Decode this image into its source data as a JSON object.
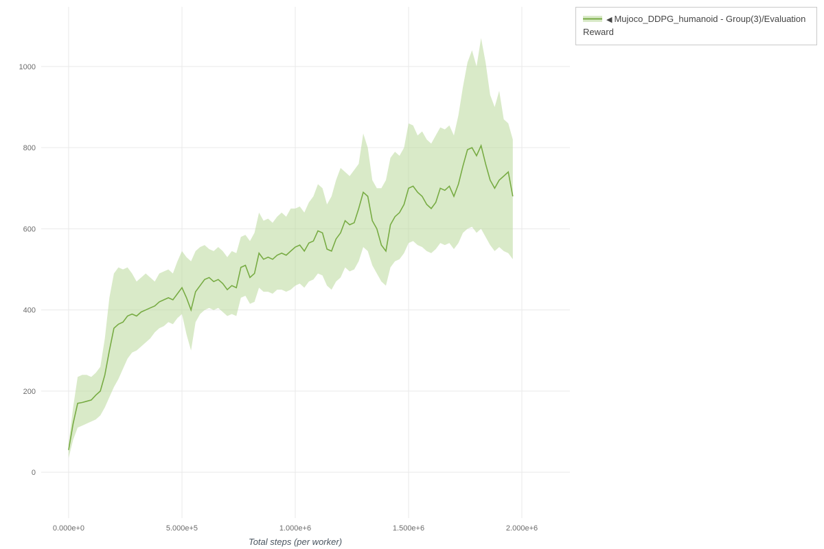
{
  "legend": {
    "collapse_icon": "◀",
    "label": "Mujoco_DDPG_humanoid - Group(3)/Evaluation Reward"
  },
  "chart_data": {
    "type": "line",
    "title": "",
    "xlabel": "Total steps (per worker)",
    "ylabel": "",
    "legend_position": "top-right",
    "grid": true,
    "x_start": 0,
    "x_step": 20000,
    "xlim": [
      -121000,
      2212000
    ],
    "ylim": [
      -113,
      1147
    ],
    "x_ticks": {
      "values": [
        0,
        500000,
        1000000,
        1500000,
        2000000
      ],
      "labels": [
        "0.000e+0",
        "5.000e+5",
        "1.000e+6",
        "1.500e+6",
        "2.000e+6"
      ]
    },
    "y_ticks": {
      "values": [
        0,
        200,
        400,
        600,
        800,
        1000
      ],
      "labels": [
        "0",
        "200",
        "400",
        "600",
        "800",
        "1000"
      ]
    },
    "colors": {
      "line": "#77ab43",
      "band": "#b9d89b",
      "band_opacity": "0.55",
      "grid": "#e9e9e9",
      "tick_text": "#6b6b6b",
      "axis_label": "#4a5560"
    },
    "series": [
      {
        "name": "Mujoco_DDPG_humanoid - Group(3)/Evaluation Reward",
        "mean": [
          55,
          120,
          170,
          172,
          175,
          178,
          190,
          200,
          240,
          300,
          355,
          365,
          370,
          385,
          390,
          385,
          395,
          400,
          405,
          410,
          420,
          425,
          430,
          425,
          440,
          455,
          430,
          400,
          445,
          460,
          475,
          480,
          470,
          475,
          465,
          450,
          460,
          455,
          505,
          510,
          480,
          490,
          540,
          525,
          530,
          525,
          535,
          540,
          535,
          545,
          555,
          560,
          545,
          565,
          570,
          595,
          590,
          550,
          545,
          575,
          590,
          620,
          610,
          615,
          650,
          690,
          680,
          620,
          600,
          560,
          545,
          610,
          630,
          640,
          660,
          700,
          705,
          690,
          680,
          660,
          650,
          665,
          700,
          695,
          705,
          680,
          710,
          755,
          795,
          800,
          780,
          805,
          760,
          720,
          700,
          720,
          730,
          740,
          680
        ],
        "band_high": [
          70,
          160,
          235,
          240,
          240,
          235,
          245,
          260,
          330,
          430,
          490,
          505,
          500,
          505,
          490,
          470,
          480,
          490,
          480,
          470,
          490,
          495,
          500,
          490,
          520,
          545,
          530,
          520,
          545,
          555,
          560,
          550,
          545,
          555,
          545,
          530,
          545,
          540,
          580,
          585,
          570,
          590,
          640,
          620,
          625,
          615,
          630,
          640,
          630,
          650,
          650,
          655,
          640,
          665,
          680,
          710,
          700,
          660,
          680,
          720,
          750,
          740,
          730,
          745,
          760,
          835,
          800,
          720,
          700,
          700,
          720,
          775,
          790,
          780,
          800,
          860,
          855,
          830,
          840,
          820,
          810,
          830,
          850,
          845,
          855,
          830,
          880,
          950,
          1010,
          1040,
          1000,
          1070,
          1010,
          930,
          900,
          940,
          870,
          860,
          820
        ],
        "band_low": [
          35,
          80,
          110,
          115,
          120,
          125,
          130,
          140,
          160,
          185,
          210,
          230,
          255,
          280,
          295,
          300,
          310,
          320,
          330,
          345,
          355,
          360,
          370,
          365,
          380,
          390,
          340,
          300,
          370,
          390,
          400,
          405,
          400,
          405,
          395,
          385,
          390,
          385,
          430,
          435,
          415,
          420,
          455,
          445,
          445,
          440,
          450,
          450,
          445,
          450,
          460,
          465,
          455,
          470,
          475,
          490,
          485,
          460,
          450,
          470,
          480,
          505,
          495,
          500,
          520,
          555,
          545,
          510,
          490,
          470,
          460,
          505,
          520,
          525,
          540,
          565,
          570,
          560,
          555,
          545,
          540,
          550,
          565,
          560,
          565,
          550,
          565,
          590,
          600,
          605,
          590,
          600,
          580,
          560,
          545,
          555,
          545,
          540,
          525
        ]
      }
    ]
  }
}
